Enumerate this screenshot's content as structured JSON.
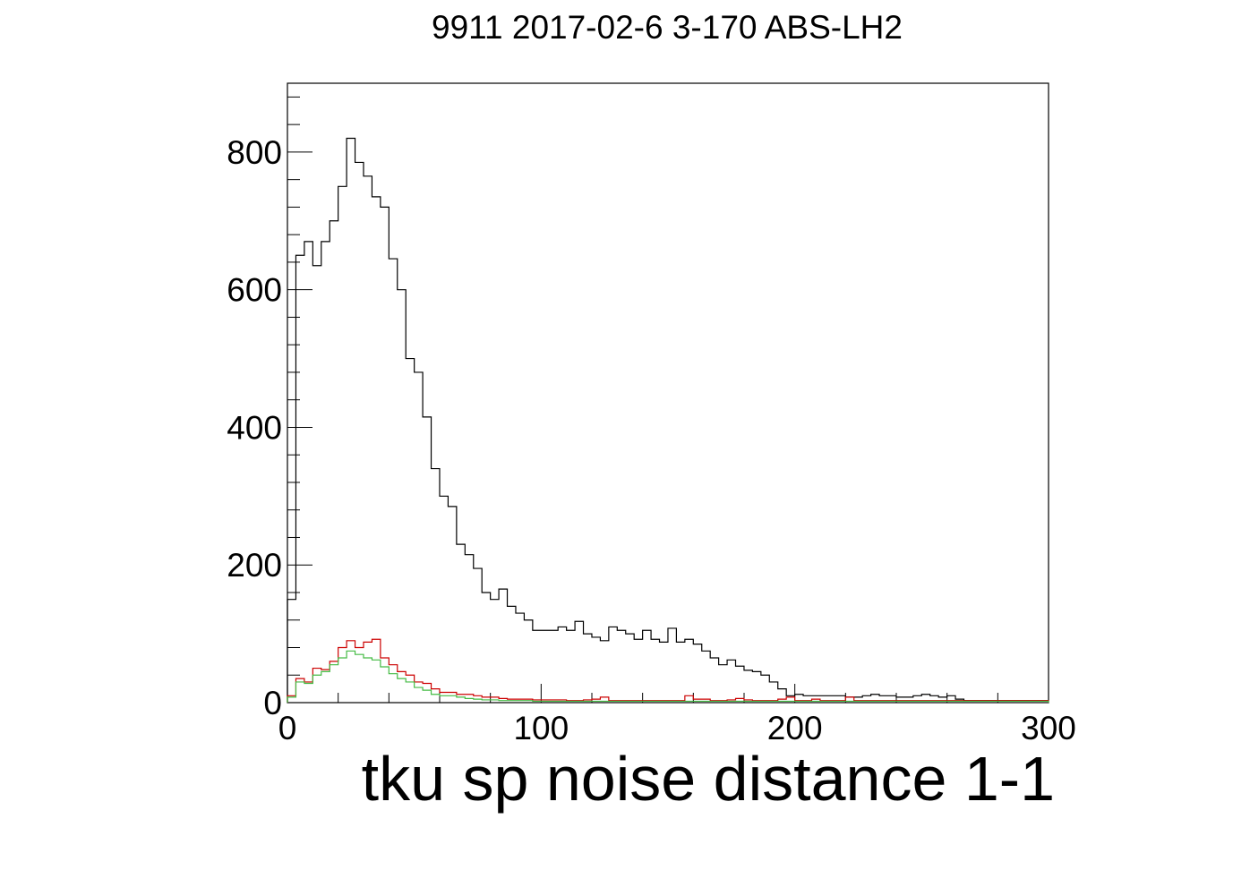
{
  "chart_data": {
    "type": "histogram",
    "title": "9911 2017-02-6 3-170 ABS-LH2",
    "xlabel": "tku sp noise distance 1-1",
    "ylabel": "",
    "xlim": [
      0,
      300
    ],
    "ylim": [
      0,
      900
    ],
    "x_ticks": [
      "0",
      "100",
      "200",
      "300"
    ],
    "y_ticks": [
      "0",
      "200",
      "400",
      "600",
      "800"
    ],
    "grid": false,
    "bin_width": 3.333,
    "series": [
      {
        "color": "#000000",
        "values": [
          150,
          650,
          670,
          635,
          670,
          700,
          750,
          820,
          785,
          765,
          735,
          720,
          645,
          600,
          500,
          480,
          415,
          340,
          300,
          285,
          230,
          215,
          195,
          160,
          150,
          165,
          140,
          130,
          120,
          105,
          105,
          105,
          110,
          105,
          118,
          100,
          95,
          90,
          110,
          105,
          100,
          92,
          105,
          92,
          88,
          108,
          88,
          92,
          85,
          75,
          65,
          55,
          62,
          53,
          47,
          45,
          40,
          30,
          20,
          10,
          12,
          10,
          10,
          10,
          10,
          10,
          8,
          8,
          10,
          12,
          10,
          10,
          8,
          8,
          10,
          12,
          10,
          8,
          10,
          5,
          3,
          3,
          3,
          3,
          3,
          3,
          3,
          3,
          3,
          3
        ]
      },
      {
        "color": "#cc0000",
        "values": [
          10,
          35,
          30,
          50,
          48,
          60,
          80,
          90,
          80,
          88,
          92,
          65,
          55,
          45,
          40,
          30,
          28,
          20,
          15,
          15,
          12,
          12,
          10,
          8,
          8,
          6,
          5,
          5,
          5,
          4,
          4,
          4,
          4,
          3,
          3,
          4,
          5,
          8,
          3,
          3,
          3,
          3,
          3,
          3,
          3,
          3,
          3,
          10,
          5,
          5,
          3,
          3,
          4,
          6,
          4,
          3,
          3,
          3,
          5,
          8,
          3,
          3,
          5,
          3,
          3,
          3,
          8,
          3,
          3,
          3,
          3,
          3,
          3,
          3,
          3,
          3,
          3,
          3,
          3,
          3,
          3,
          3,
          3,
          3,
          3,
          3,
          3,
          3,
          3,
          3
        ]
      },
      {
        "color": "#44bb44",
        "values": [
          8,
          30,
          28,
          40,
          45,
          55,
          65,
          75,
          70,
          65,
          62,
          52,
          42,
          35,
          30,
          22,
          18,
          12,
          10,
          10,
          8,
          6,
          5,
          4,
          4,
          3,
          3,
          3,
          3,
          2,
          2,
          2,
          2,
          2,
          2,
          2,
          2,
          2,
          2,
          2,
          2,
          2,
          2,
          2,
          2,
          2,
          2,
          2,
          2,
          2,
          2,
          2,
          2,
          2,
          2,
          2,
          2,
          2,
          2,
          2,
          2,
          2,
          2,
          2,
          2,
          2,
          2,
          2,
          2,
          2,
          2,
          2,
          2,
          2,
          2,
          2,
          2,
          2,
          2,
          2,
          2,
          2,
          2,
          2,
          2,
          2,
          2,
          2,
          2,
          2
        ]
      }
    ]
  }
}
